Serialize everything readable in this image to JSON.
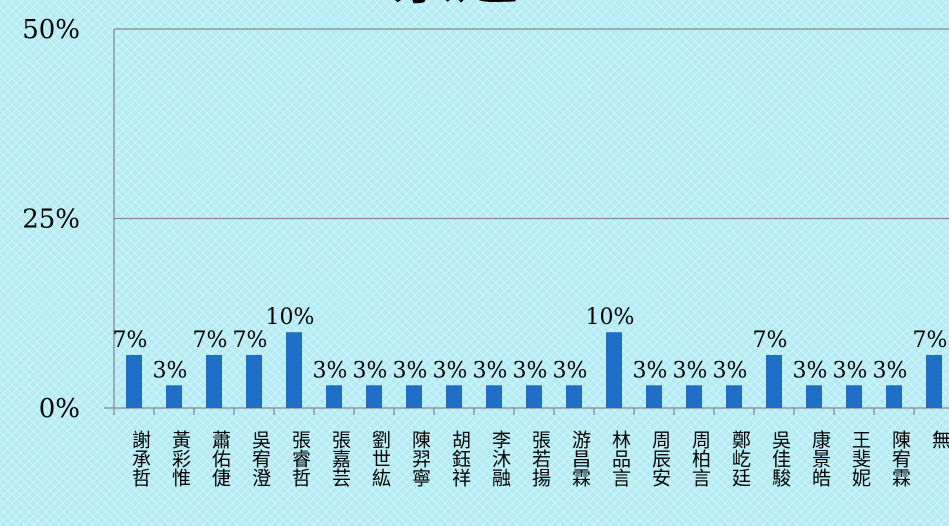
{
  "chart_data": {
    "type": "bar",
    "title": "票選",
    "xlabel": "",
    "ylabel": "",
    "ylim": [
      0,
      50
    ],
    "yticks": [
      "0%",
      "25%",
      "50%"
    ],
    "grid": true,
    "categories": [
      "謝承哲",
      "黃彩惟",
      "蕭佑倢",
      "吳宥澄",
      "張睿哲",
      "張嘉芸",
      "劉世紘",
      "陳羿寧",
      "胡鈺祥",
      "李沐融",
      "張若揚",
      "游昌霖",
      "林品言",
      "周辰安",
      "周柏言",
      "鄭屹廷",
      "吳佳駿",
      "康景皓",
      "王斐妮",
      "陳宥霖",
      "無"
    ],
    "values": [
      7,
      3,
      7,
      7,
      10,
      3,
      3,
      3,
      3,
      3,
      3,
      3,
      10,
      3,
      3,
      3,
      7,
      3,
      3,
      3,
      7
    ],
    "data_labels": [
      "7%",
      "3%",
      "7%",
      "7%",
      "10%",
      "3%",
      "3%",
      "3%",
      "3%",
      "3%",
      "3%",
      "3%",
      "10%",
      "3%",
      "3%",
      "3%",
      "7%",
      "3%",
      "3%",
      "3%",
      "7%"
    ],
    "bar_color": "#1f6fc8"
  }
}
